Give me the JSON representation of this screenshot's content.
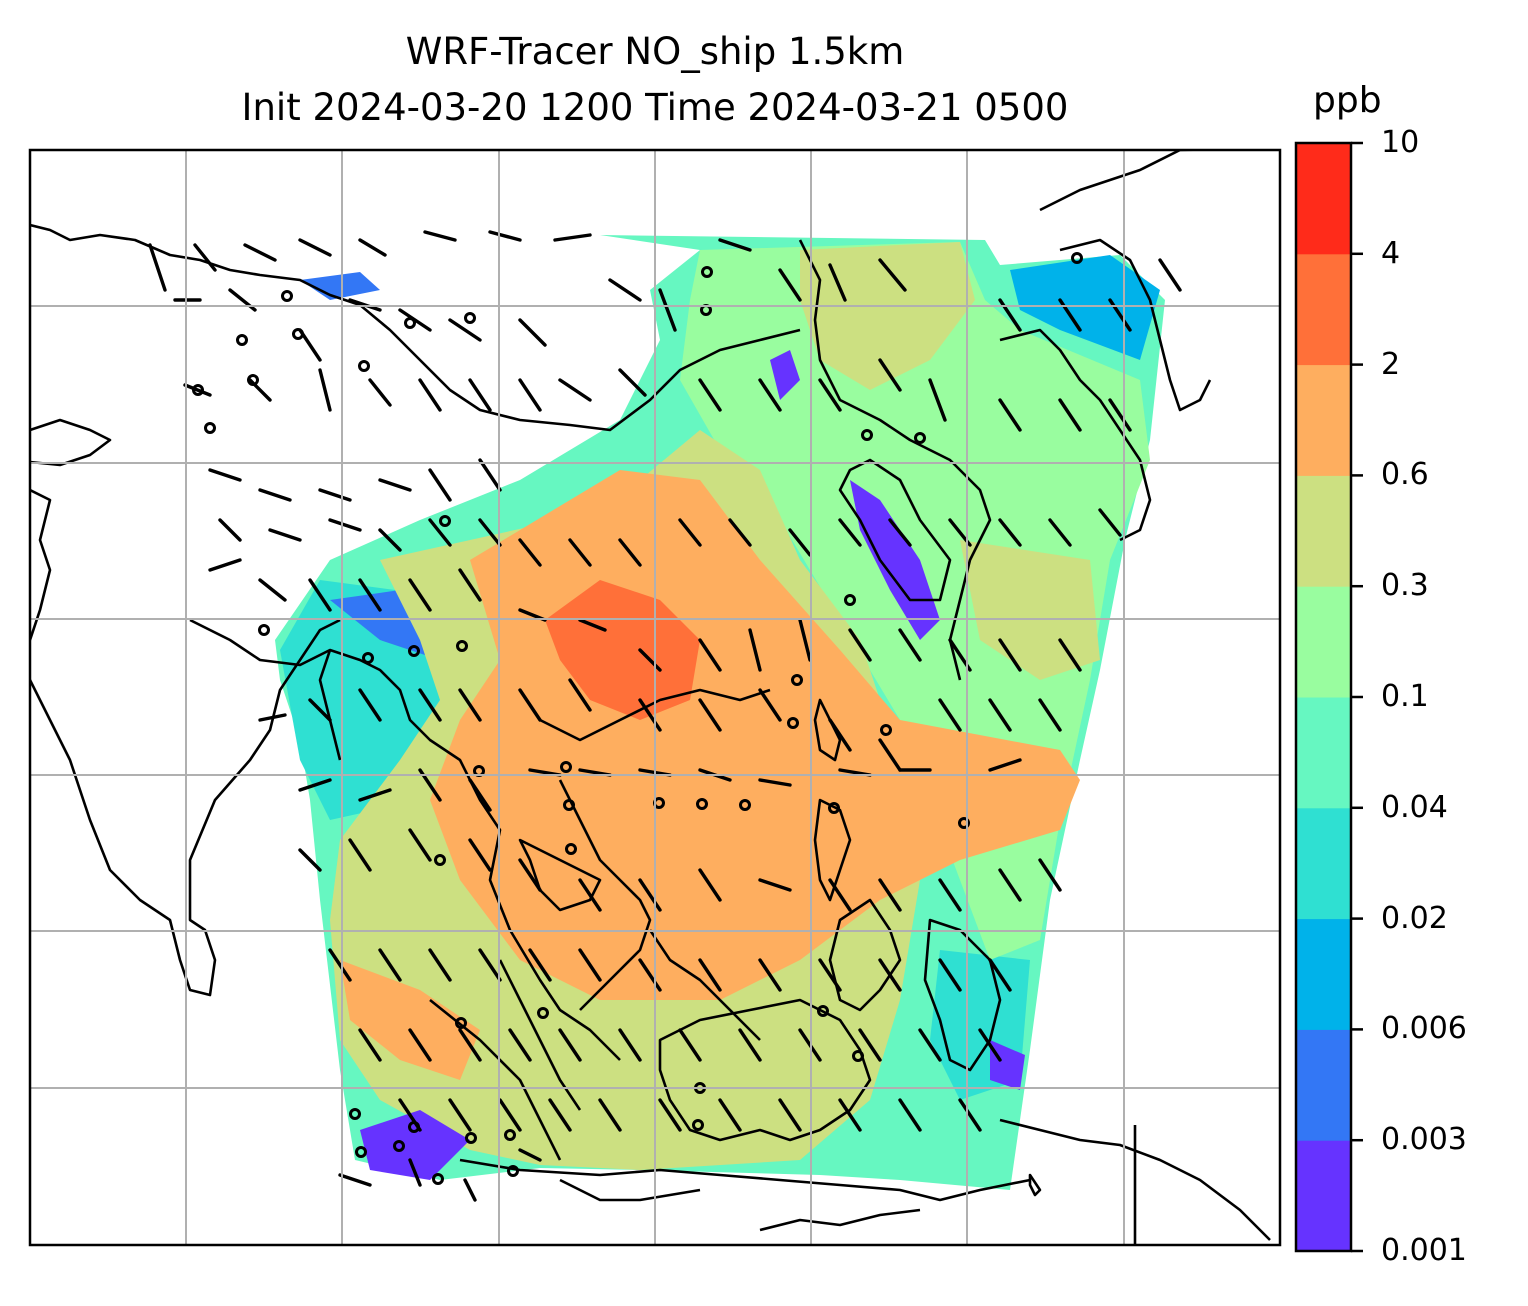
{
  "title_line1": "WRF-Tracer NO_ship 1.5km",
  "title_line2": "Init 2024-03-20 1200 Time 2024-03-21 0500",
  "colorbar": {
    "unit": "ppb",
    "tick_labels": [
      "10",
      "4",
      "2",
      "0.6",
      "0.3",
      "0.1",
      "0.04",
      "0.02",
      "0.006",
      "0.003",
      "0.001"
    ],
    "colors": [
      "#6633ff",
      "#3377f5",
      "#00b2ea",
      "#2fe0d2",
      "#66f7c1",
      "#99fd9f",
      "#cce081",
      "#feae5f",
      "#ff7039",
      "#ff2b1a"
    ]
  },
  "map": {
    "gridlines": true,
    "wind_barbs": true,
    "coastlines": true
  }
}
